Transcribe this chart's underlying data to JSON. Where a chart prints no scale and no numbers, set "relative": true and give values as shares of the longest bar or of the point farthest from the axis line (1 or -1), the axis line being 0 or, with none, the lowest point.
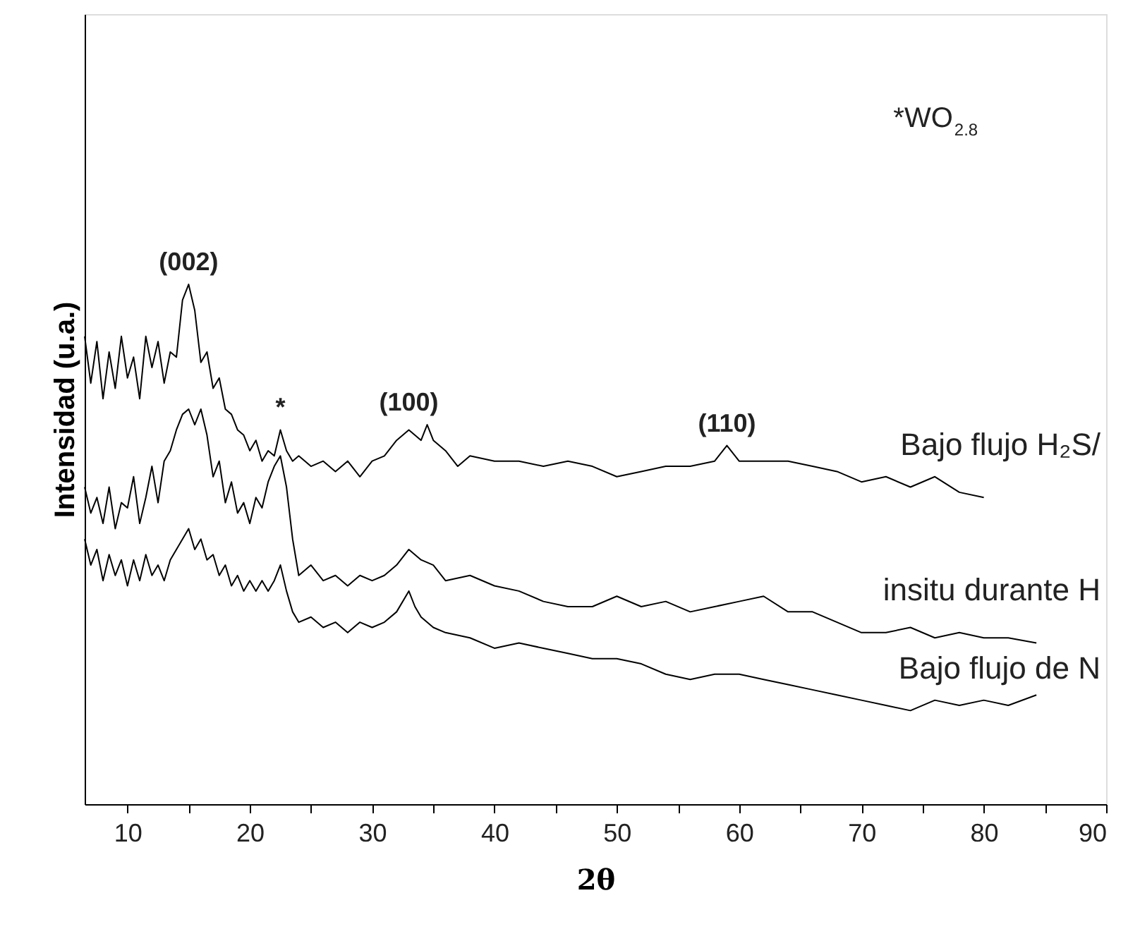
{
  "chart_data": {
    "type": "line",
    "relative": true,
    "xlabel": "2θ",
    "ylabel": "Intensidad (u.a.)",
    "xlim": [
      6.5,
      90
    ],
    "xticks": [
      10,
      {
        "value": 15,
        "label": null
      },
      20,
      {
        "value": 25,
        "label": null
      },
      30,
      {
        "value": 35,
        "label": null
      },
      40,
      {
        "value": 45,
        "label": null
      },
      50,
      {
        "value": 55,
        "label": null
      },
      60,
      {
        "value": 65,
        "label": null
      },
      70,
      {
        "value": 75,
        "label": null
      },
      80,
      {
        "value": 85,
        "label": null
      },
      90
    ],
    "annotations": [
      "*WO$_{2.8}$",
      {
        "text": "(002)",
        "x": 15,
        "y": 1.0
      },
      {
        "text": "*",
        "x": 22.5,
        "y": 0.72
      },
      {
        "text": "(100)",
        "x": 33,
        "y": 0.73
      },
      {
        "text": "(110)",
        "x": 59,
        "y": 0.69
      }
    ],
    "series": [
      {
        "name": "Bajo flujo H₂S/",
        "color": "#000000",
        "x": [
          6.5,
          7,
          7.5,
          8,
          8.5,
          9,
          9.5,
          10,
          10.5,
          11,
          11.5,
          12,
          12.5,
          13,
          13.5,
          14,
          14.5,
          15,
          15.5,
          16,
          16.5,
          17,
          17.5,
          18,
          18.5,
          19,
          19.5,
          20,
          20.5,
          21,
          21.5,
          22,
          22.5,
          23,
          23.5,
          24,
          25,
          26,
          27,
          28,
          29,
          30,
          31,
          32,
          33,
          34,
          34.5,
          35,
          36,
          37,
          38,
          40,
          42,
          44,
          46,
          48,
          50,
          52,
          54,
          56,
          58,
          59,
          60,
          62,
          64,
          66,
          68,
          70,
          72,
          74,
          76,
          78,
          80
        ],
        "values": [
          0.9,
          0.81,
          0.89,
          0.78,
          0.87,
          0.8,
          0.9,
          0.82,
          0.86,
          0.78,
          0.9,
          0.84,
          0.89,
          0.81,
          0.87,
          0.86,
          0.97,
          1.0,
          0.95,
          0.85,
          0.87,
          0.8,
          0.82,
          0.76,
          0.75,
          0.72,
          0.71,
          0.68,
          0.7,
          0.66,
          0.68,
          0.67,
          0.72,
          0.68,
          0.66,
          0.67,
          0.65,
          0.66,
          0.64,
          0.66,
          0.63,
          0.66,
          0.67,
          0.7,
          0.72,
          0.7,
          0.73,
          0.7,
          0.68,
          0.65,
          0.67,
          0.66,
          0.66,
          0.65,
          0.66,
          0.65,
          0.63,
          0.64,
          0.65,
          0.65,
          0.66,
          0.69,
          0.66,
          0.66,
          0.66,
          0.65,
          0.64,
          0.62,
          0.63,
          0.61,
          0.63,
          0.6,
          0.59
        ]
      },
      {
        "name": "insitu durante H",
        "color": "#000000",
        "x": [
          6.5,
          7,
          7.5,
          8,
          8.5,
          9,
          9.5,
          10,
          10.5,
          11,
          11.5,
          12,
          12.5,
          13,
          13.5,
          14,
          14.5,
          15,
          15.5,
          16,
          16.5,
          17,
          17.5,
          18,
          18.5,
          19,
          19.5,
          20,
          20.5,
          21,
          21.5,
          22,
          22.5,
          23,
          23.5,
          24,
          25,
          26,
          27,
          28,
          29,
          30,
          31,
          32,
          33,
          34,
          35,
          36,
          38,
          40,
          42,
          44,
          46,
          48,
          50,
          52,
          54,
          56,
          58,
          60,
          62,
          64,
          66,
          68,
          70,
          72,
          74,
          76,
          78,
          80,
          82,
          84.3
        ],
        "values": [
          0.61,
          0.56,
          0.59,
          0.54,
          0.61,
          0.53,
          0.58,
          0.57,
          0.63,
          0.54,
          0.59,
          0.65,
          0.58,
          0.66,
          0.68,
          0.72,
          0.75,
          0.76,
          0.73,
          0.76,
          0.71,
          0.63,
          0.66,
          0.58,
          0.62,
          0.56,
          0.58,
          0.54,
          0.59,
          0.57,
          0.62,
          0.65,
          0.67,
          0.61,
          0.51,
          0.44,
          0.46,
          0.43,
          0.44,
          0.42,
          0.44,
          0.43,
          0.44,
          0.46,
          0.49,
          0.47,
          0.46,
          0.43,
          0.44,
          0.42,
          0.41,
          0.39,
          0.38,
          0.38,
          0.4,
          0.38,
          0.39,
          0.37,
          0.38,
          0.39,
          0.4,
          0.37,
          0.37,
          0.35,
          0.33,
          0.33,
          0.34,
          0.32,
          0.33,
          0.32,
          0.32,
          0.31
        ]
      },
      {
        "name": "Bajo flujo de N",
        "color": "#000000",
        "x": [
          6.5,
          7,
          7.5,
          8,
          8.5,
          9,
          9.5,
          10,
          10.5,
          11,
          11.5,
          12,
          12.5,
          13,
          13.5,
          14,
          14.5,
          15,
          15.5,
          16,
          16.5,
          17,
          17.5,
          18,
          18.5,
          19,
          19.5,
          20,
          20.5,
          21,
          21.5,
          22,
          22.5,
          23,
          23.5,
          24,
          25,
          26,
          27,
          28,
          29,
          30,
          31,
          32,
          33,
          33.5,
          34,
          35,
          36,
          38,
          40,
          42,
          44,
          46,
          48,
          50,
          52,
          54,
          56,
          58,
          60,
          62,
          64,
          66,
          68,
          70,
          72,
          74,
          76,
          78,
          80,
          82,
          84.3
        ],
        "values": [
          0.51,
          0.46,
          0.49,
          0.43,
          0.48,
          0.44,
          0.47,
          0.42,
          0.47,
          0.43,
          0.48,
          0.44,
          0.46,
          0.43,
          0.47,
          0.49,
          0.51,
          0.53,
          0.49,
          0.51,
          0.47,
          0.48,
          0.44,
          0.46,
          0.42,
          0.44,
          0.41,
          0.43,
          0.41,
          0.43,
          0.41,
          0.43,
          0.46,
          0.41,
          0.37,
          0.35,
          0.36,
          0.34,
          0.35,
          0.33,
          0.35,
          0.34,
          0.35,
          0.37,
          0.41,
          0.38,
          0.36,
          0.34,
          0.33,
          0.32,
          0.3,
          0.31,
          0.3,
          0.29,
          0.28,
          0.28,
          0.27,
          0.25,
          0.24,
          0.25,
          0.25,
          0.24,
          0.23,
          0.22,
          0.21,
          0.2,
          0.19,
          0.18,
          0.2,
          0.19,
          0.2,
          0.19,
          0.21
        ]
      }
    ]
  }
}
